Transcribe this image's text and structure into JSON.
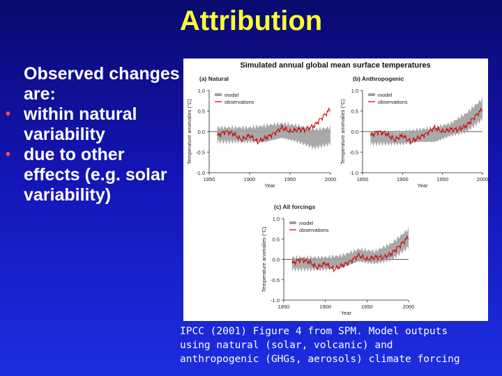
{
  "slide": {
    "title": "Attribution",
    "intro": "Observed changes are:",
    "bullets": [
      "within natural variability",
      "due to other effects (e.g. solar variability)"
    ],
    "bullet_color": "#ff5050",
    "caption_lines": [
      "IPCC (2001) Figure 4 from SPM. Model outputs",
      "using natural (solar, volcanic) and",
      "anthropogenic (GHGs, aerosols) climate forcing"
    ]
  },
  "chart_data": [
    {
      "type": "line",
      "figure_title": "Simulated annual global mean surface temperatures",
      "title": "(a) Natural",
      "xlabel": "Year",
      "ylabel": "Temperature anomalies (°C)",
      "xlim": [
        1850,
        2000
      ],
      "ylim": [
        -1.0,
        1.0
      ],
      "xticks": [
        "1850",
        "1900",
        "1950",
        "2000"
      ],
      "yticks": [
        "-1.0",
        "-0.5",
        "0.0",
        "0.5",
        "1.0"
      ],
      "legend": [
        "model",
        "observations"
      ],
      "colors": {
        "model": "#a0a0a0",
        "observations": "#cc0000"
      },
      "series": [
        {
          "name": "model",
          "x": [
            1860,
            1880,
            1900,
            1920,
            1940,
            1960,
            1980,
            2000
          ],
          "low": [
            -0.25,
            -0.25,
            -0.25,
            -0.25,
            -0.15,
            -0.25,
            -0.4,
            -0.3
          ],
          "high": [
            0.1,
            0.1,
            0.1,
            0.15,
            0.2,
            0.15,
            0.05,
            0.1
          ]
        },
        {
          "name": "observations",
          "x": [
            1860,
            1870,
            1880,
            1890,
            1900,
            1910,
            1920,
            1930,
            1940,
            1950,
            1960,
            1970,
            1980,
            1990,
            2000
          ],
          "values": [
            -0.1,
            0.0,
            -0.05,
            -0.2,
            -0.1,
            -0.25,
            -0.15,
            -0.05,
            0.1,
            0.0,
            0.05,
            0.05,
            0.15,
            0.35,
            0.55
          ]
        }
      ]
    },
    {
      "type": "line",
      "title": "(b) Anthropogenic",
      "xlabel": "Year",
      "ylabel": "Temperature anomalies (°C)",
      "xlim": [
        1850,
        2000
      ],
      "ylim": [
        -1.0,
        1.0
      ],
      "xticks": [
        "1850",
        "1900",
        "1950",
        "2000"
      ],
      "yticks": [
        "-1.0",
        "-0.5",
        "0.0",
        "0.5",
        "1.0"
      ],
      "legend": [
        "model",
        "observations"
      ],
      "colors": {
        "model": "#a0a0a0",
        "observations": "#cc0000"
      },
      "series": [
        {
          "name": "model",
          "x": [
            1860,
            1880,
            1900,
            1920,
            1940,
            1960,
            1980,
            2000
          ],
          "low": [
            -0.3,
            -0.3,
            -0.3,
            -0.25,
            -0.25,
            -0.1,
            0.0,
            0.3
          ],
          "high": [
            0.0,
            0.0,
            0.0,
            0.05,
            0.1,
            0.2,
            0.45,
            0.8
          ]
        },
        {
          "name": "observations",
          "x": [
            1860,
            1870,
            1880,
            1890,
            1900,
            1910,
            1920,
            1930,
            1940,
            1950,
            1960,
            1970,
            1980,
            1990,
            2000
          ],
          "values": [
            -0.1,
            0.0,
            -0.05,
            -0.2,
            -0.1,
            -0.25,
            -0.15,
            -0.05,
            0.1,
            0.0,
            0.05,
            0.05,
            0.15,
            0.35,
            0.55
          ]
        }
      ]
    },
    {
      "type": "line",
      "title": "(c) All forcings",
      "xlabel": "Year",
      "ylabel": "Temperature anomalies (°C)",
      "xlim": [
        1850,
        2000
      ],
      "ylim": [
        -1.0,
        1.0
      ],
      "xticks": [
        "1850",
        "1900",
        "1950",
        "2000"
      ],
      "yticks": [
        "-1.0",
        "-0.5",
        "0.0",
        "0.5",
        "1.0"
      ],
      "legend": [
        "model",
        "observations"
      ],
      "colors": {
        "model": "#a0a0a0",
        "observations": "#cc0000"
      },
      "series": [
        {
          "name": "model",
          "x": [
            1860,
            1880,
            1900,
            1920,
            1940,
            1960,
            1980,
            2000
          ],
          "low": [
            -0.25,
            -0.25,
            -0.25,
            -0.2,
            -0.05,
            -0.1,
            0.0,
            0.3
          ],
          "high": [
            0.05,
            0.05,
            0.05,
            0.1,
            0.25,
            0.2,
            0.4,
            0.75
          ]
        },
        {
          "name": "observations",
          "x": [
            1860,
            1870,
            1880,
            1890,
            1900,
            1910,
            1920,
            1930,
            1940,
            1950,
            1960,
            1970,
            1980,
            1990,
            2000
          ],
          "values": [
            -0.1,
            0.0,
            -0.05,
            -0.2,
            -0.1,
            -0.25,
            -0.15,
            -0.05,
            0.1,
            0.0,
            0.05,
            0.05,
            0.15,
            0.35,
            0.55
          ]
        }
      ]
    }
  ]
}
